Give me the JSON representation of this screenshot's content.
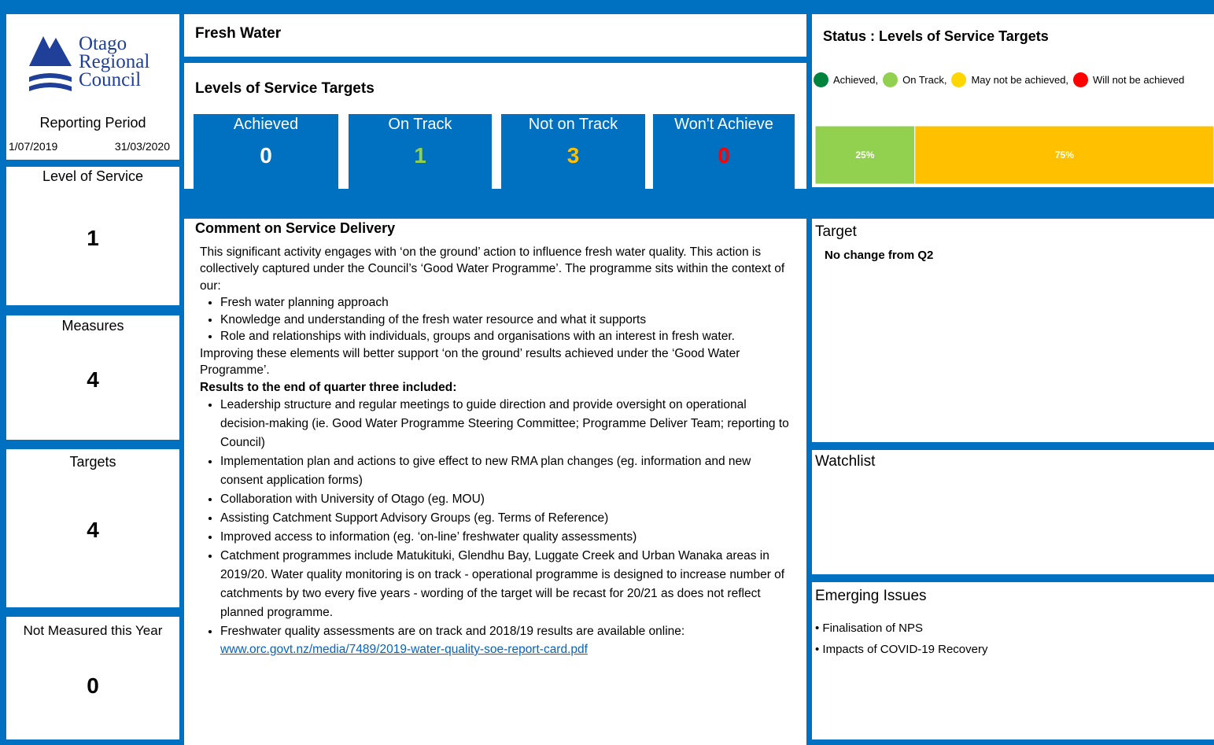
{
  "logo": {
    "lines": [
      "Otago",
      "Regional",
      "Council"
    ]
  },
  "reporting_period": {
    "label": "Reporting Period",
    "start": "1/07/2019",
    "end": "31/03/2020"
  },
  "sidebar": [
    {
      "label": "Level of Service",
      "value": 1
    },
    {
      "label": "Measures",
      "value": 4
    },
    {
      "label": "Targets",
      "value": 4
    },
    {
      "label": "Not Measured this Year",
      "value": 0
    }
  ],
  "header": {
    "title": "Fresh Water"
  },
  "targets": {
    "title": "Levels of Service Targets",
    "cells": [
      {
        "label": "Achieved",
        "value": 0,
        "color": "#ffffff"
      },
      {
        "label": "On Track",
        "value": 1,
        "color": "#92d050"
      },
      {
        "label": "Not on Track",
        "value": 3,
        "color": "#ffc000"
      },
      {
        "label": "Won't Achieve",
        "value": 0,
        "color": "#ff0000"
      }
    ]
  },
  "status": {
    "title": "Status : Levels of Service Targets",
    "legend": [
      {
        "label": "Achieved,",
        "color": "#00843d"
      },
      {
        "label": "On Track,",
        "color": "#92d050"
      },
      {
        "label": "May not be achieved,",
        "color": "#ffd700"
      },
      {
        "label": "Will not be achieved",
        "color": "#ff0000"
      }
    ],
    "bar": {
      "type": "bar",
      "values": [
        25,
        75
      ],
      "value_labels": [
        "25%",
        "75%"
      ],
      "colors": [
        "#92d050",
        "#ffc000"
      ]
    }
  },
  "comment": {
    "title": "Comment on Service Delivery",
    "intro": "This significant activity engages with ‘on the ground’ action to influence fresh water quality. This action is collectively captured under the Council’s ‘Good Water Programme’.  The programme sits within the context of our:",
    "context": [
      "Fresh water planning approach",
      "Knowledge and understanding of the fresh water resource and what it supports",
      "Role and relationships with individuals, groups and organisations with an interest in fresh water."
    ],
    "after": "Improving these elements will better support ‘on the ground’ results achieved under the ‘Good Water Programme’.",
    "results_heading": "Results to the end of quarter three included:",
    "results": [
      "Leadership structure and regular meetings to guide direction and provide oversight on operational decision-making (ie. Good Water Programme Steering Committee; Programme Deliver Team; reporting to Council)",
      "Implementation plan and actions to give effect to new RMA plan changes (eg. information and new consent application forms)",
      "Collaboration with University of Otago (eg. MOU)",
      "Assisting Catchment Support Advisory Groups (eg. Terms of Reference)",
      "Improved access to information (eg. ‘on-line’ freshwater quality assessments)",
      "Catchment programmes include Matukituki, Glendhu Bay, Luggate Creek and Urban Wanaka areas in 2019/20. Water quality monitoring is on track - operational programme is designed to increase number of catchments by two every five years - wording of the target will be recast for 20/21 as does not reflect planned programme.",
      "Freshwater quality assessments are on track and 2018/19 results are available online:"
    ],
    "link": "www.orc.govt.nz/media/7489/2019-water-quality-soe-report-card.pdf"
  },
  "target": {
    "title": "Target",
    "text": "No change from Q2"
  },
  "watchlist": {
    "title": "Watchlist"
  },
  "emerging": {
    "title": "Emerging Issues",
    "items": [
      "• Finalisation of NPS",
      "• Impacts of COVID-19 Recovery"
    ]
  }
}
